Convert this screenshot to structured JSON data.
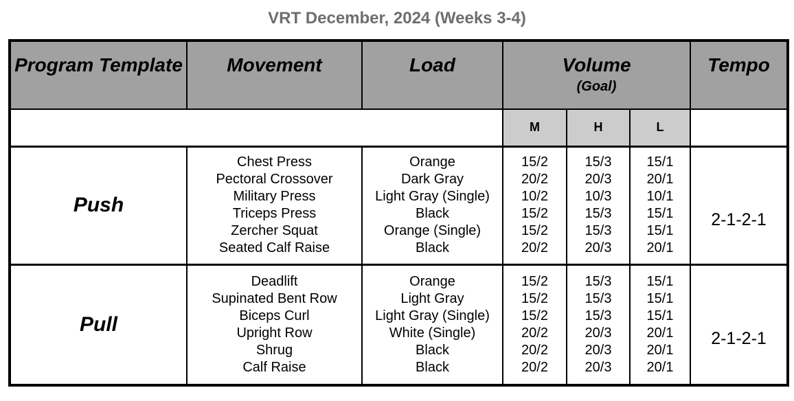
{
  "page_title": "VRT December, 2024 (Weeks 3-4)",
  "table": {
    "headers": {
      "program_template": "Program Template",
      "movement": "Movement",
      "load": "Load",
      "volume": "Volume",
      "volume_goal": "(Goal)",
      "tempo": "Tempo"
    },
    "volume_levels": [
      "M",
      "H",
      "L"
    ],
    "blocks": [
      {
        "name": "Push",
        "tempo": "2-1-2-1",
        "exercises": [
          {
            "movement": "Chest Press",
            "load": "Orange",
            "m": "15/2",
            "h": "15/3",
            "l": "15/1"
          },
          {
            "movement": "Pectoral Crossover",
            "load": "Dark Gray",
            "m": "20/2",
            "h": "20/3",
            "l": "20/1"
          },
          {
            "movement": "Military Press",
            "load": "Light Gray (Single)",
            "m": "10/2",
            "h": "10/3",
            "l": "10/1"
          },
          {
            "movement": "Triceps Press",
            "load": "Black",
            "m": "15/2",
            "h": "15/3",
            "l": "15/1"
          },
          {
            "movement": "Zercher Squat",
            "load": "Orange (Single)",
            "m": "15/2",
            "h": "15/3",
            "l": "15/1"
          },
          {
            "movement": "Seated Calf Raise",
            "load": "Black",
            "m": "20/2",
            "h": "20/3",
            "l": "20/1"
          }
        ]
      },
      {
        "name": "Pull",
        "tempo": "2-1-2-1",
        "exercises": [
          {
            "movement": "Deadlift",
            "load": "Orange",
            "m": "15/2",
            "h": "15/3",
            "l": "15/1"
          },
          {
            "movement": "Supinated Bent Row",
            "load": "Light Gray",
            "m": "15/2",
            "h": "15/3",
            "l": "15/1"
          },
          {
            "movement": "Biceps Curl",
            "load": "Light Gray (Single)",
            "m": "15/2",
            "h": "15/3",
            "l": "15/1"
          },
          {
            "movement": "Upright Row",
            "load": "White (Single)",
            "m": "20/2",
            "h": "20/3",
            "l": "20/1"
          },
          {
            "movement": "Shrug",
            "load": "Black",
            "m": "20/2",
            "h": "20/3",
            "l": "20/1"
          },
          {
            "movement": "Calf Raise",
            "load": "Black",
            "m": "20/2",
            "h": "20/3",
            "l": "20/1"
          }
        ]
      }
    ]
  },
  "colors": {
    "header_bg": "#a1a1a1",
    "block_bg": "#b7b7b7",
    "level_bg": "#cccccc",
    "border": "#000000",
    "title_text": "#6e6e6e"
  }
}
